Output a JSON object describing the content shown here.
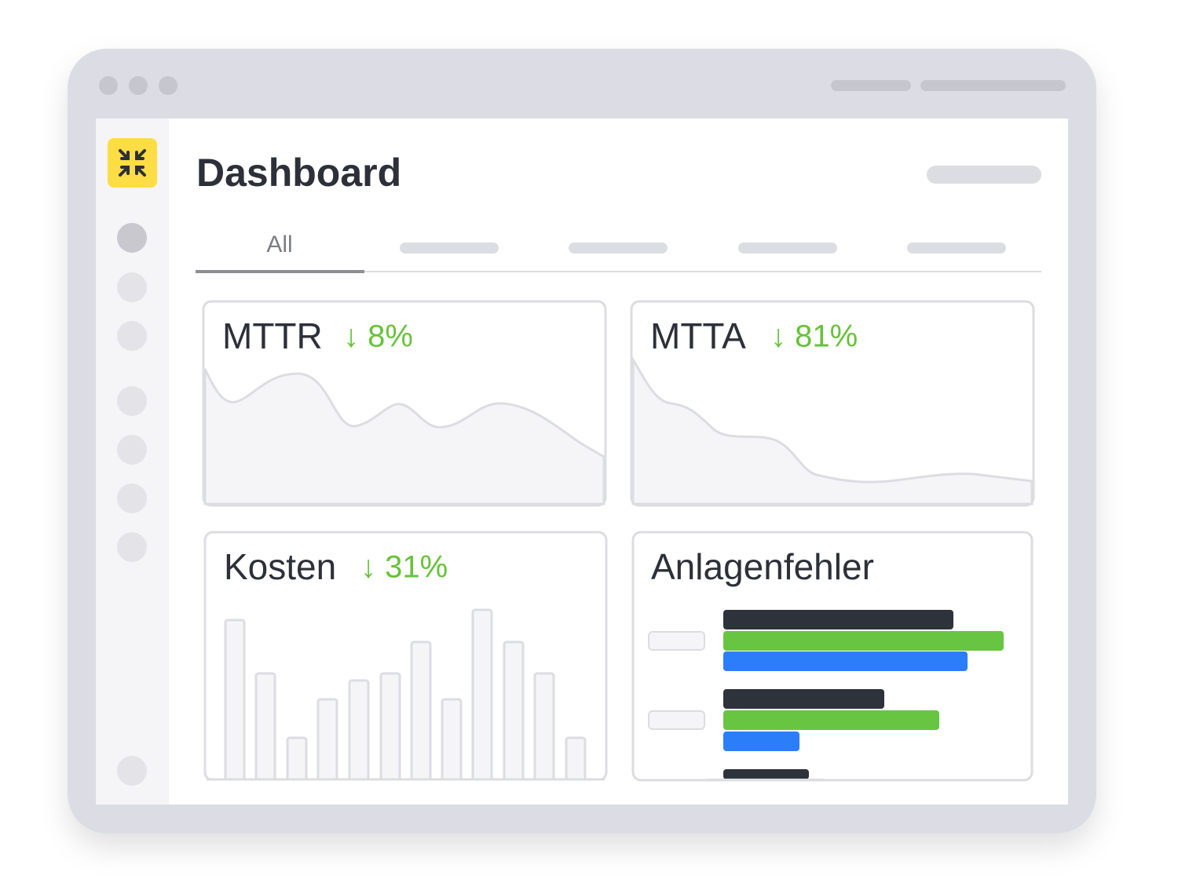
{
  "header": {
    "title": "Dashboard"
  },
  "tabs": [
    "All"
  ],
  "cards": [
    {
      "title": "MTTR",
      "delta": "↓ 8%"
    },
    {
      "title": "MTTA",
      "delta": "↓ 81%"
    },
    {
      "title": "Kosten",
      "delta": "↓ 31%"
    },
    {
      "title": "Anlagenfehler"
    }
  ]
}
